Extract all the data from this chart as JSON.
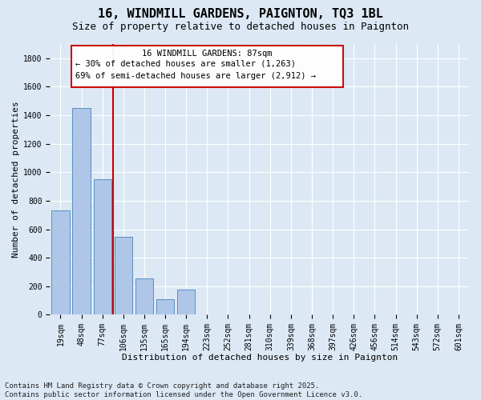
{
  "title": "16, WINDMILL GARDENS, PAIGNTON, TQ3 1BL",
  "subtitle": "Size of property relative to detached houses in Paignton",
  "xlabel": "Distribution of detached houses by size in Paignton",
  "ylabel": "Number of detached properties",
  "bar_values": [
    733,
    1449,
    950,
    546,
    254,
    107,
    175,
    0,
    0,
    0,
    0,
    0,
    0,
    0,
    0,
    0,
    0,
    0,
    0,
    0
  ],
  "bin_labels": [
    "19sqm",
    "48sqm",
    "77sqm",
    "106sqm",
    "135sqm",
    "165sqm",
    "194sqm",
    "223sqm",
    "252sqm",
    "281sqm",
    "310sqm",
    "339sqm",
    "368sqm",
    "397sqm",
    "426sqm",
    "456sqm",
    "514sqm",
    "543sqm",
    "572sqm",
    "601sqm"
  ],
  "bar_color": "#aec6e8",
  "bar_edge_color": "#5a8fc0",
  "ylim": [
    0,
    1900
  ],
  "yticks": [
    0,
    200,
    400,
    600,
    800,
    1000,
    1200,
    1400,
    1600,
    1800
  ],
  "property_line_x": 2.5,
  "property_line_color": "#cc0000",
  "annotation_box_color": "#cc0000",
  "annotation_text_line1": "16 WINDMILL GARDENS: 87sqm",
  "annotation_text_line2": "← 30% of detached houses are smaller (1,263)",
  "annotation_text_line3": "69% of semi-detached houses are larger (2,912) →",
  "footer_line1": "Contains HM Land Registry data © Crown copyright and database right 2025.",
  "footer_line2": "Contains public sector information licensed under the Open Government Licence v3.0.",
  "background_color": "#dce9f5",
  "plot_bg_color": "#dce9f5",
  "grid_color": "#ffffff",
  "title_fontsize": 11,
  "subtitle_fontsize": 9,
  "xlabel_fontsize": 8,
  "ylabel_fontsize": 8,
  "tick_fontsize": 7,
  "footer_fontsize": 6.5,
  "annotation_fontsize": 7.5
}
